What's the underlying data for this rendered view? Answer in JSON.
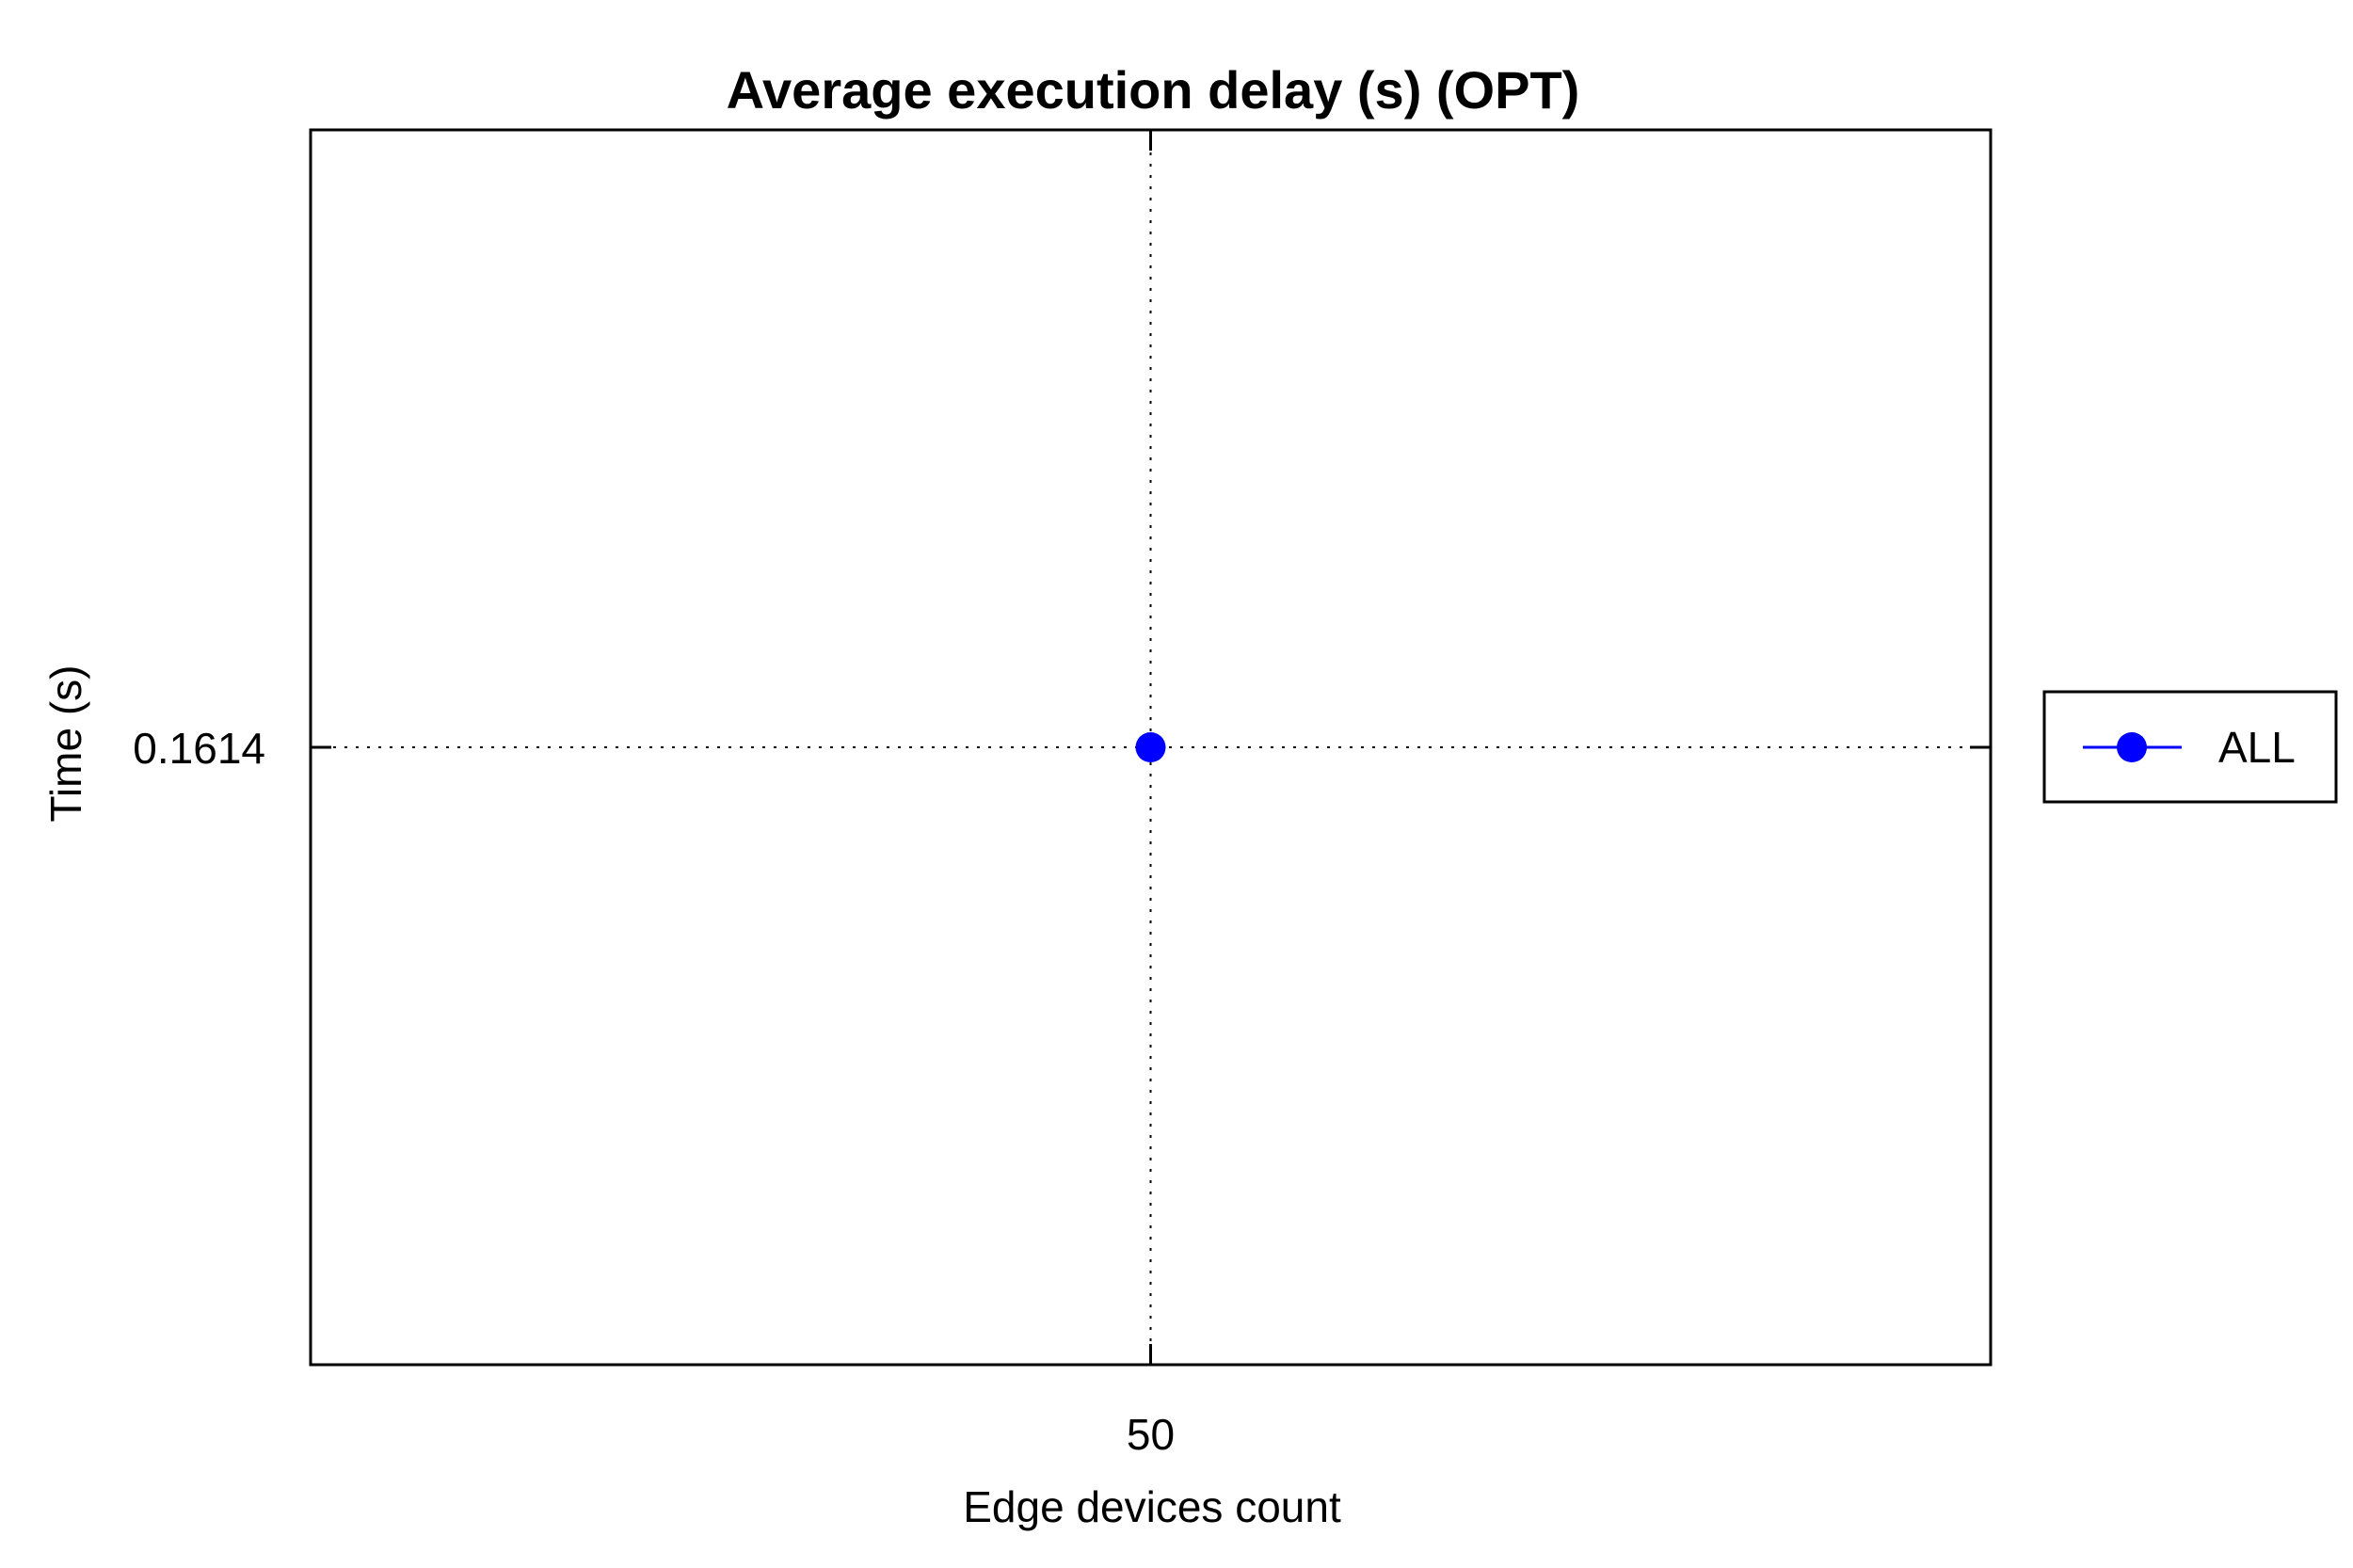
{
  "chart_data": {
    "type": "line",
    "title": "Average execution delay (s) (OPT)",
    "xlabel": "Edge devices count",
    "ylabel": "Time (s)",
    "x": [
      50
    ],
    "x_tick_labels": [
      "50"
    ],
    "y_tick_labels": [
      "0.1614"
    ],
    "y_ticks": [
      0.1614
    ],
    "series": [
      {
        "name": "ALL",
        "values": [
          0.1614
        ],
        "color": "#0000ff",
        "marker": "circle"
      }
    ],
    "grid": true,
    "legend": "right",
    "colors": {
      "series": "#0000ff",
      "axes": "#000000",
      "grid": "#000000"
    }
  }
}
